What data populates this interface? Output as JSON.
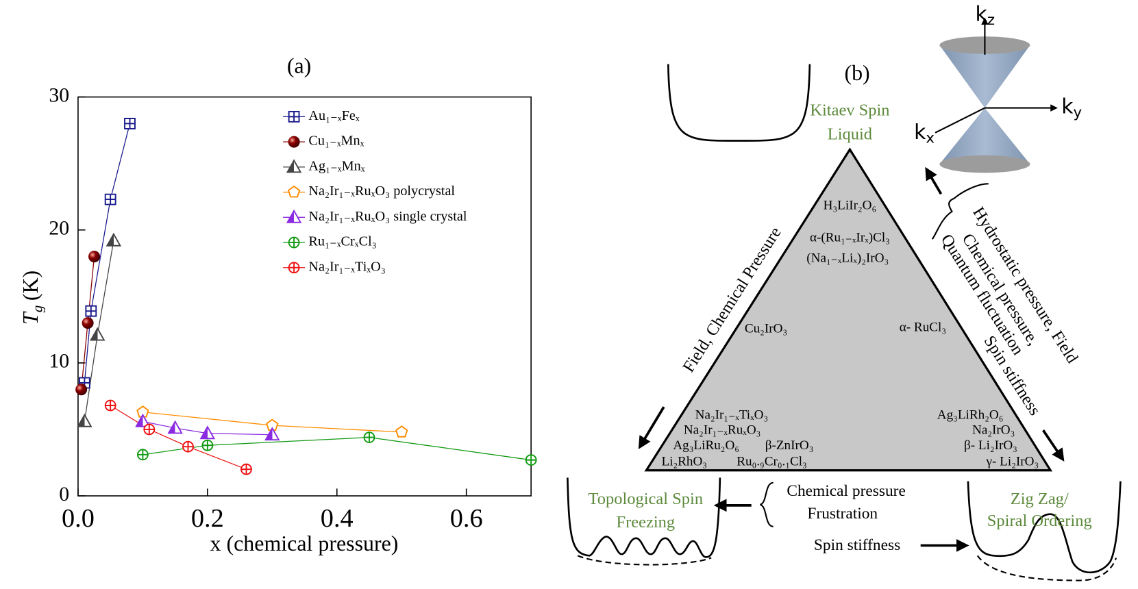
{
  "chart_data": {
    "type": "line",
    "title": "(a)",
    "xlabel": "x (chemical pressure)",
    "ylabel": {
      "symbol": "T",
      "sub": "g",
      "unit": "(K)"
    },
    "xlim": [
      0,
      0.7
    ],
    "xticks": [
      {
        "value": 0,
        "label": "0.0"
      },
      0.2,
      0.4,
      0.6
    ],
    "ylim": [
      0,
      30
    ],
    "yticks": [
      0,
      10,
      20,
      30
    ],
    "series": [
      {
        "name": "Au₁₋ₓFeₓ",
        "color": "#1a1a8c",
        "marker": "square-plus",
        "x": [
          0.01,
          0.02,
          0.05,
          0.08
        ],
        "values": [
          8.5,
          13.9,
          22.3,
          28
        ]
      },
      {
        "name": "Cu₁₋ₓMnₓ",
        "color": "#8b0000",
        "marker": "sphere",
        "x": [
          0.005,
          0.015,
          0.025
        ],
        "values": [
          8,
          13,
          18
        ]
      },
      {
        "name": "Ag₁₋ₓMnₓ",
        "color": "#444444",
        "marker": "half-triangle",
        "x": [
          0.01,
          0.03,
          0.055
        ],
        "values": [
          5.6,
          12.1,
          19.2
        ]
      },
      {
        "name": "Na₂Ir₁₋ₓRuₓO₃ polycrystal",
        "color": "#ff8c00",
        "marker": "pentagon",
        "x": [
          0.1,
          0.3,
          0.5
        ],
        "values": [
          6.3,
          5.3,
          4.8
        ]
      },
      {
        "name": "Na₂Ir₁₋ₓRuₓO₃ single crystal",
        "color": "#8a2be2",
        "marker": "half-triangle",
        "x": [
          0.1,
          0.15,
          0.2,
          0.3
        ],
        "values": [
          5.6,
          5.1,
          4.7,
          4.6
        ]
      },
      {
        "name": "Ru₁₋ₓCrₓCl₃",
        "color": "#119911",
        "marker": "circle-plus",
        "x": [
          0.1,
          0.2,
          0.45,
          0.7
        ],
        "values": [
          3.1,
          3.8,
          4.4,
          2.7
        ]
      },
      {
        "name": "Na₂Ir₁₋ₓTiₓO₃",
        "color": "#ee1111",
        "marker": "circle-plus",
        "x": [
          0.05,
          0.11,
          0.17,
          0.26
        ],
        "values": [
          6.8,
          5,
          3.7,
          2
        ]
      }
    ]
  },
  "diagram": {
    "label": "(b)",
    "top_vertex": [
      "Kitaev Spin",
      "Liquid"
    ],
    "left_vertex": [
      "Topological Spin",
      "Freezing"
    ],
    "right_vertex": [
      "Zig Zag/",
      "Spiral Ordering"
    ],
    "materials": [
      "H₃LiIr₂O₆",
      "α-(Ru₁₋ₓIrₓ)Cl₃",
      "(Na₁₋ₓLiₓ)₂IrO₃",
      "Cu₂IrO₃",
      "α- RuCl₃",
      "Na₂Ir₁₋ₓTiₓO₃",
      "Na₂Ir₁₋ₓRuₓO₃",
      "Ag₃LiRu₂O₆",
      "β-ZnIrO₃",
      "Li₂RhO₃",
      "Ru₀.₉Cr₀.₁Cl₃",
      "Ag₃LiRh₂O₆",
      "Na₂IrO₃",
      "β- Li₂IrO₃",
      "γ- Li₂IrO₃"
    ],
    "left_edge": "Field, Chemical Pressure",
    "right_edge": [
      "Hydrostatic pressure, Field",
      "Chemical pressure,",
      "Quantum fluctuation",
      "Spin stiffness"
    ],
    "bottom_labels": [
      "Chemical pressure",
      "Frustration"
    ],
    "bottom_right_label": "Spin stiffness",
    "axes": {
      "kz": {
        "main": "k",
        "sub": "z"
      },
      "ky": {
        "main": "k",
        "sub": "y"
      },
      "kx": {
        "main": "k",
        "sub": "x"
      }
    }
  }
}
